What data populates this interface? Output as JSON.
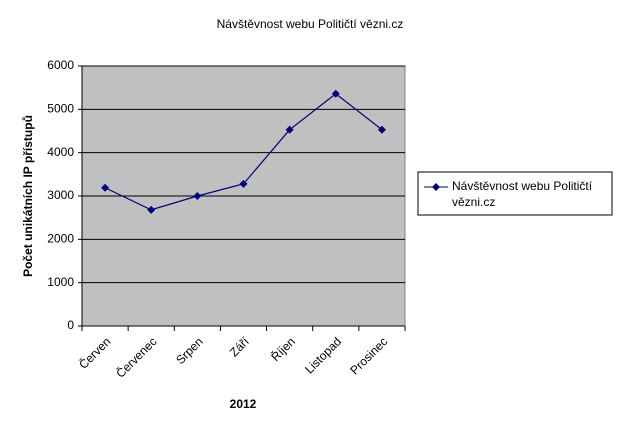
{
  "chart_data": {
    "type": "line",
    "title": "Návštěvnost webu Političtí vězni.cz",
    "x_label": "2012",
    "y_label": "Počet unikátních IP přístupů",
    "categories": [
      "Červen",
      "Červenec",
      "Srpen",
      "Září",
      "Říjen",
      "Listopad",
      "Prosinec"
    ],
    "series": [
      {
        "name": "Návštěvnost webu Političtí vězni.cz",
        "color": "#000080",
        "values": [
          3190,
          2680,
          3000,
          3280,
          4530,
          5360,
          4530
        ]
      }
    ],
    "ylim": [
      0,
      6000
    ],
    "yticks": [
      0,
      1000,
      2000,
      3000,
      4000,
      5000,
      6000
    ],
    "grid": true,
    "legend": "right"
  }
}
